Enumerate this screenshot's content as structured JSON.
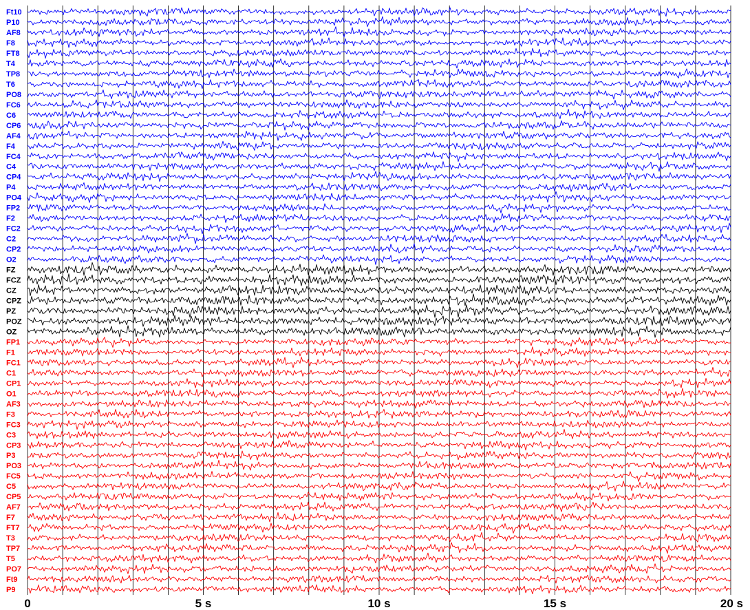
{
  "chart_data": {
    "type": "line",
    "title": "",
    "xlabel": "",
    "ylabel": "",
    "x_unit": "s",
    "xlim": [
      0,
      20
    ],
    "x_ticks": [
      {
        "value": 0,
        "label": "0"
      },
      {
        "value": 5,
        "label": "5 s"
      },
      {
        "value": 10,
        "label": "10 s"
      },
      {
        "value": 15,
        "label": "15 s"
      },
      {
        "value": 20,
        "label": "20 s"
      }
    ],
    "vertical_gridlines_every_s": 1,
    "grid": true,
    "group_colors": {
      "right": "#0000ff",
      "midline": "#000000",
      "left": "#ff0000"
    },
    "channels": [
      {
        "name": "Ft10",
        "group": "right"
      },
      {
        "name": "P10",
        "group": "right"
      },
      {
        "name": "AF8",
        "group": "right"
      },
      {
        "name": "F8",
        "group": "right"
      },
      {
        "name": "FT8",
        "group": "right"
      },
      {
        "name": "T4",
        "group": "right"
      },
      {
        "name": "TP8",
        "group": "right"
      },
      {
        "name": "T6",
        "group": "right"
      },
      {
        "name": "PO8",
        "group": "right"
      },
      {
        "name": "FC6",
        "group": "right"
      },
      {
        "name": "C6",
        "group": "right"
      },
      {
        "name": "CP6",
        "group": "right"
      },
      {
        "name": "AF4",
        "group": "right"
      },
      {
        "name": "F4",
        "group": "right"
      },
      {
        "name": "FC4",
        "group": "right"
      },
      {
        "name": "C4",
        "group": "right"
      },
      {
        "name": "CP4",
        "group": "right"
      },
      {
        "name": "P4",
        "group": "right"
      },
      {
        "name": "PO4",
        "group": "right"
      },
      {
        "name": "FP2",
        "group": "right"
      },
      {
        "name": "F2",
        "group": "right"
      },
      {
        "name": "FC2",
        "group": "right"
      },
      {
        "name": "C2",
        "group": "right"
      },
      {
        "name": "CP2",
        "group": "right"
      },
      {
        "name": "O2",
        "group": "right"
      },
      {
        "name": "FZ",
        "group": "midline"
      },
      {
        "name": "FCZ",
        "group": "midline"
      },
      {
        "name": "CZ",
        "group": "midline"
      },
      {
        "name": "CPZ",
        "group": "midline"
      },
      {
        "name": "PZ",
        "group": "midline"
      },
      {
        "name": "POZ",
        "group": "midline"
      },
      {
        "name": "OZ",
        "group": "midline"
      },
      {
        "name": "FP1",
        "group": "left"
      },
      {
        "name": "F1",
        "group": "left"
      },
      {
        "name": "FC1",
        "group": "left"
      },
      {
        "name": "C1",
        "group": "left"
      },
      {
        "name": "CP1",
        "group": "left"
      },
      {
        "name": "O1",
        "group": "left"
      },
      {
        "name": "AF3",
        "group": "left"
      },
      {
        "name": "F3",
        "group": "left"
      },
      {
        "name": "FC3",
        "group": "left"
      },
      {
        "name": "C3",
        "group": "left"
      },
      {
        "name": "CP3",
        "group": "left"
      },
      {
        "name": "P3",
        "group": "left"
      },
      {
        "name": "PO3",
        "group": "left"
      },
      {
        "name": "FC5",
        "group": "left"
      },
      {
        "name": "C5",
        "group": "left"
      },
      {
        "name": "CP5",
        "group": "left"
      },
      {
        "name": "AF7",
        "group": "left"
      },
      {
        "name": "F7",
        "group": "left"
      },
      {
        "name": "FT7",
        "group": "left"
      },
      {
        "name": "T3",
        "group": "left"
      },
      {
        "name": "TP7",
        "group": "left"
      },
      {
        "name": "T5",
        "group": "left"
      },
      {
        "name": "PO7",
        "group": "left"
      },
      {
        "name": "Ft9",
        "group": "left"
      },
      {
        "name": "P9",
        "group": "left"
      }
    ]
  }
}
